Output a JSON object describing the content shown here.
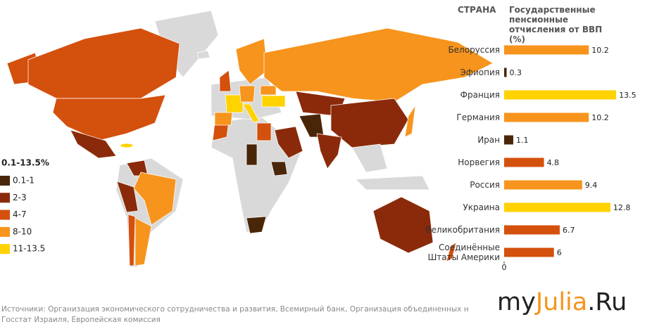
{
  "legend": {
    "title": "0.1-13.5%",
    "items": [
      {
        "label": "0.1-1",
        "color": "#4a2608"
      },
      {
        "label": "2-3",
        "color": "#8b2a0a"
      },
      {
        "label": "4-7",
        "color": "#d4500d"
      },
      {
        "label": "8-10",
        "color": "#f7941d"
      },
      {
        "label": "11-13.5",
        "color": "#ffd200"
      }
    ]
  },
  "chart_data": {
    "type": "bar",
    "orientation": "horizontal",
    "category_header": "СТРАНА",
    "title": "Государственные пенсионные отчисления от ВВП (%)",
    "categories": [
      "Белоруссия",
      "Эфиопия",
      "Франция",
      "Германия",
      "Иран",
      "Норвегия",
      "Россия",
      "Украина",
      "Великобритания",
      "Соединённые Штаты Америки"
    ],
    "values": [
      10.2,
      0.3,
      13.5,
      10.2,
      1.1,
      4.8,
      9.4,
      12.8,
      6.7,
      6
    ],
    "colors": [
      "#f7941d",
      "#4a2608",
      "#ffd200",
      "#f7941d",
      "#4a2608",
      "#d4500d",
      "#f7941d",
      "#ffd200",
      "#d4500d",
      "#d4500d"
    ],
    "xlim": [
      0,
      14
    ],
    "xticks": [
      0
    ]
  },
  "sources": [
    "Источники: Организация экономического сотрудничества и развития, Всемирный банк, Организация объединенных н",
    "Госстат Израиля, Европейская комиссия"
  ],
  "watermark": [
    "my",
    "Julia",
    ".Ru"
  ]
}
